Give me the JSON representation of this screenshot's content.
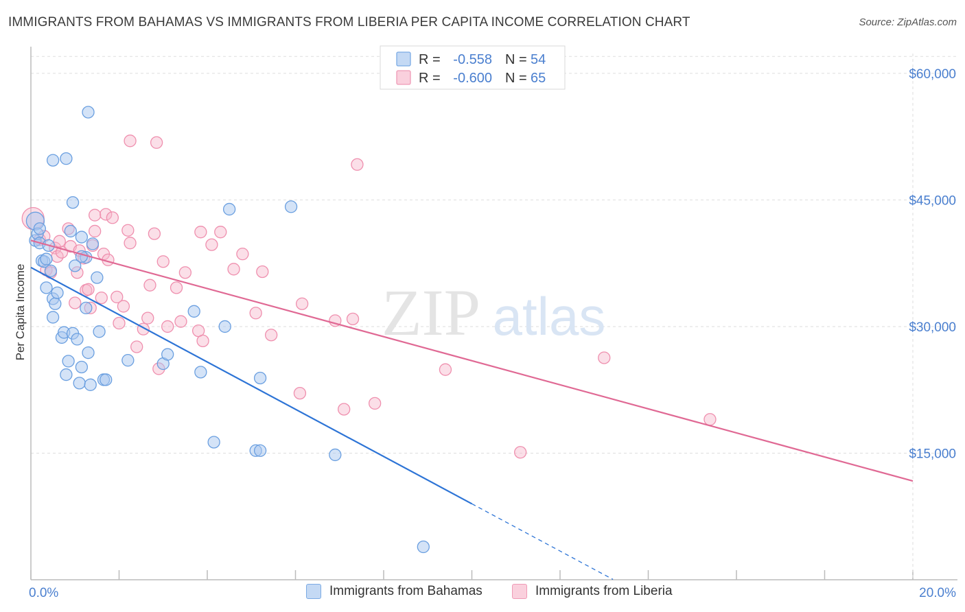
{
  "title": "IMMIGRANTS FROM BAHAMAS VS IMMIGRANTS FROM LIBERIA PER CAPITA INCOME CORRELATION CHART",
  "source": "Source: ZipAtlas.com",
  "watermark": {
    "zip": "ZIP",
    "atlas": "atlas"
  },
  "colors": {
    "bahamas_fill": "#a9c8f0",
    "bahamas_stroke": "#6a9fe0",
    "bahamas_line": "#2d74d6",
    "liberia_fill": "#f6b8cb",
    "liberia_stroke": "#ef8fae",
    "liberia_line": "#e06994",
    "axis_label": "#4a7fcf",
    "grid": "#dddddd"
  },
  "legend_top": {
    "rows": [
      {
        "r_label": "R =",
        "r_value": "-0.558",
        "n_label": "N =",
        "n_value": "54"
      },
      {
        "r_label": "R =",
        "r_value": "-0.600",
        "n_label": "N =",
        "n_value": "65"
      }
    ]
  },
  "legend_bottom": {
    "bahamas": "Immigrants from Bahamas",
    "liberia": "Immigrants from Liberia"
  },
  "chart_data": {
    "type": "scatter",
    "title": "IMMIGRANTS FROM BAHAMAS VS IMMIGRANTS FROM LIBERIA PER CAPITA INCOME CORRELATION CHART",
    "xlabel": "",
    "ylabel": "Per Capita Income",
    "xlim": [
      0,
      20
    ],
    "ylim": [
      0,
      63000
    ],
    "x_tick_labels": [
      "0.0%",
      "20.0%"
    ],
    "y_tick_labels": [
      "$60,000",
      "$45,000",
      "$30,000",
      "$15,000"
    ],
    "y_ticks": [
      60000,
      45000,
      30000,
      15000
    ],
    "series": [
      {
        "name": "Immigrants from Bahamas",
        "R": -0.558,
        "N": 54,
        "trend": {
          "x0": 0.0,
          "y0": 37000,
          "x_solid_end": 10.0,
          "x_dash_end": 13.2,
          "slope": -2800
        },
        "points": [
          [
            0.1,
            42500
          ],
          [
            0.1,
            40200
          ],
          [
            0.15,
            41000
          ],
          [
            0.2,
            39900
          ],
          [
            0.25,
            37800
          ],
          [
            0.3,
            37700
          ],
          [
            0.35,
            38000
          ],
          [
            0.4,
            39600
          ],
          [
            0.45,
            36600
          ],
          [
            0.35,
            34600
          ],
          [
            0.5,
            33300
          ],
          [
            0.55,
            32700
          ],
          [
            0.5,
            31100
          ],
          [
            0.6,
            34000
          ],
          [
            0.7,
            28700
          ],
          [
            0.75,
            29300
          ],
          [
            0.8,
            24300
          ],
          [
            0.85,
            25900
          ],
          [
            0.95,
            29200
          ],
          [
            1.0,
            37200
          ],
          [
            1.05,
            28500
          ],
          [
            1.1,
            23300
          ],
          [
            1.15,
            25200
          ],
          [
            1.25,
            32200
          ],
          [
            1.3,
            26900
          ],
          [
            1.35,
            23100
          ],
          [
            1.4,
            39800
          ],
          [
            1.5,
            35800
          ],
          [
            1.55,
            29400
          ],
          [
            1.65,
            23700
          ],
          [
            1.7,
            23700
          ],
          [
            1.25,
            38200
          ],
          [
            0.9,
            41300
          ],
          [
            1.15,
            38300
          ],
          [
            0.5,
            49700
          ],
          [
            0.8,
            49900
          ],
          [
            0.95,
            44700
          ],
          [
            1.3,
            55400
          ],
          [
            2.2,
            26000
          ],
          [
            3.0,
            25600
          ],
          [
            3.1,
            26700
          ],
          [
            3.7,
            31800
          ],
          [
            3.85,
            24600
          ],
          [
            4.15,
            16300
          ],
          [
            4.4,
            30000
          ],
          [
            4.5,
            43900
          ],
          [
            5.1,
            15300
          ],
          [
            5.2,
            15300
          ],
          [
            5.2,
            23900
          ],
          [
            5.9,
            44200
          ],
          [
            6.9,
            14800
          ],
          [
            8.9,
            3900
          ],
          [
            0.2,
            41600
          ],
          [
            1.15,
            40600
          ]
        ]
      },
      {
        "name": "Immigrants from Liberia",
        "R": -0.6,
        "N": 65,
        "trend": {
          "x0": 0.0,
          "y0": 40200,
          "x1": 20.0,
          "y1": 11700
        },
        "points": [
          [
            0.05,
            42800
          ],
          [
            0.2,
            40300
          ],
          [
            0.3,
            40700
          ],
          [
            0.35,
            36700
          ],
          [
            0.45,
            36400
          ],
          [
            0.55,
            39300
          ],
          [
            0.6,
            38300
          ],
          [
            0.7,
            38800
          ],
          [
            0.85,
            41600
          ],
          [
            0.9,
            39500
          ],
          [
            1.0,
            32800
          ],
          [
            1.05,
            36400
          ],
          [
            1.1,
            39000
          ],
          [
            1.2,
            38100
          ],
          [
            1.25,
            34300
          ],
          [
            1.3,
            34400
          ],
          [
            1.35,
            32200
          ],
          [
            1.4,
            39600
          ],
          [
            1.45,
            43200
          ],
          [
            1.6,
            33400
          ],
          [
            1.65,
            38600
          ],
          [
            1.7,
            43300
          ],
          [
            1.75,
            37900
          ],
          [
            1.85,
            42900
          ],
          [
            1.95,
            33500
          ],
          [
            2.0,
            30400
          ],
          [
            2.1,
            32400
          ],
          [
            2.2,
            41400
          ],
          [
            2.25,
            39900
          ],
          [
            2.4,
            27600
          ],
          [
            2.55,
            29700
          ],
          [
            2.65,
            31000
          ],
          [
            2.7,
            34900
          ],
          [
            2.8,
            41000
          ],
          [
            2.9,
            25000
          ],
          [
            3.0,
            37700
          ],
          [
            3.1,
            30000
          ],
          [
            3.3,
            34600
          ],
          [
            3.4,
            30600
          ],
          [
            3.5,
            36400
          ],
          [
            3.8,
            29500
          ],
          [
            3.85,
            41200
          ],
          [
            3.9,
            28300
          ],
          [
            4.1,
            39700
          ],
          [
            4.3,
            41200
          ],
          [
            4.6,
            36800
          ],
          [
            4.8,
            38600
          ],
          [
            5.1,
            31600
          ],
          [
            5.25,
            36500
          ],
          [
            5.45,
            29000
          ],
          [
            6.1,
            22100
          ],
          [
            6.15,
            32700
          ],
          [
            6.9,
            30700
          ],
          [
            7.1,
            20200
          ],
          [
            7.3,
            30900
          ],
          [
            7.4,
            49200
          ],
          [
            7.8,
            20900
          ],
          [
            9.4,
            24900
          ],
          [
            11.1,
            15100
          ],
          [
            13.0,
            26300
          ],
          [
            15.4,
            19000
          ],
          [
            2.25,
            52000
          ],
          [
            2.85,
            51800
          ],
          [
            1.45,
            41300
          ],
          [
            0.65,
            40100
          ]
        ]
      }
    ]
  }
}
